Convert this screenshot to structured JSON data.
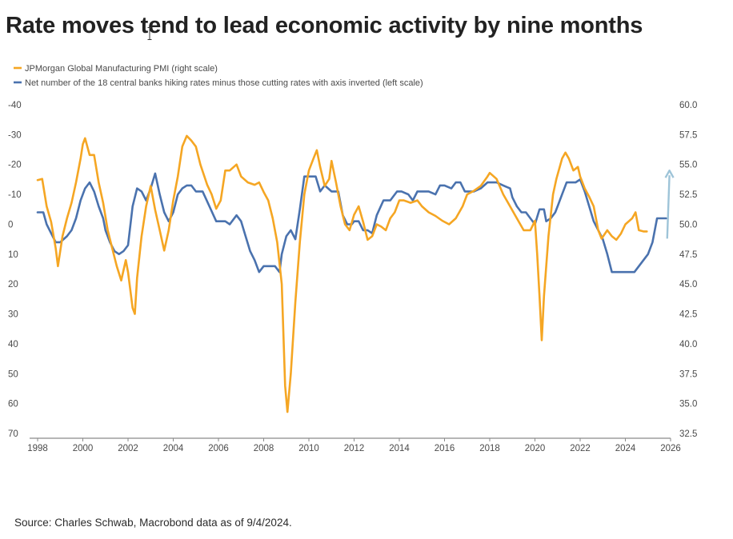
{
  "title": "Rate moves tend to lead economic activity by nine months",
  "source": "Source: Charles Schwab, Macrobond data as of 9/4/2024.",
  "chart_data": {
    "type": "line",
    "title": "Rate moves tend to lead economic activity by nine months",
    "x_range": [
      1998,
      2026
    ],
    "x_ticks": [
      "1998",
      "2000",
      "2002",
      "2004",
      "2006",
      "2008",
      "2010",
      "2012",
      "2014",
      "2016",
      "2018",
      "2020",
      "2022",
      "2024",
      "2026"
    ],
    "left_axis": {
      "inverted": true,
      "range": [
        -40,
        70
      ],
      "ticks": [
        "-40",
        "-30",
        "-20",
        "-10",
        "0",
        "10",
        "20",
        "30",
        "40",
        "50",
        "60",
        "70"
      ],
      "note": "axis inverted (left scale)"
    },
    "right_axis": {
      "range": [
        32.5,
        60.0
      ],
      "ticks": [
        "60.0",
        "57.5",
        "55.0",
        "52.5",
        "50.0",
        "47.5",
        "45.0",
        "42.5",
        "40.0",
        "37.5",
        "35.0",
        "32.5"
      ]
    },
    "legend_placement": "top-left",
    "grid": false,
    "series": [
      {
        "name": "JPMorgan Global Manufacturing PMI (right scale)",
        "axis": "right",
        "color": "#f5a623",
        "points": [
          [
            1998.0,
            53.7
          ],
          [
            1998.2,
            53.8
          ],
          [
            1998.4,
            51.5
          ],
          [
            1998.6,
            50.2
          ],
          [
            1998.8,
            48.0
          ],
          [
            1998.9,
            46.5
          ],
          [
            1999.1,
            49.0
          ],
          [
            1999.3,
            50.5
          ],
          [
            1999.5,
            51.8
          ],
          [
            1999.7,
            53.5
          ],
          [
            1999.9,
            55.5
          ],
          [
            2000.0,
            56.7
          ],
          [
            2000.1,
            57.2
          ],
          [
            2000.3,
            55.8
          ],
          [
            2000.5,
            55.8
          ],
          [
            2000.7,
            53.5
          ],
          [
            2000.9,
            51.8
          ],
          [
            2001.1,
            49.5
          ],
          [
            2001.3,
            48.0
          ],
          [
            2001.5,
            46.5
          ],
          [
            2001.7,
            45.3
          ],
          [
            2001.9,
            47.0
          ],
          [
            2002.0,
            46.0
          ],
          [
            2002.2,
            43.0
          ],
          [
            2002.3,
            42.5
          ],
          [
            2002.4,
            45.5
          ],
          [
            2002.6,
            49.0
          ],
          [
            2002.8,
            51.5
          ],
          [
            2003.0,
            53.2
          ],
          [
            2003.2,
            51.2
          ],
          [
            2003.4,
            49.5
          ],
          [
            2003.6,
            47.8
          ],
          [
            2003.8,
            49.5
          ],
          [
            2004.0,
            52.0
          ],
          [
            2004.2,
            54.0
          ],
          [
            2004.4,
            56.5
          ],
          [
            2004.6,
            57.4
          ],
          [
            2004.8,
            57.0
          ],
          [
            2005.0,
            56.5
          ],
          [
            2005.2,
            55.0
          ],
          [
            2005.5,
            53.3
          ],
          [
            2005.7,
            52.5
          ],
          [
            2005.9,
            51.3
          ],
          [
            2006.1,
            52.0
          ],
          [
            2006.3,
            54.5
          ],
          [
            2006.5,
            54.5
          ],
          [
            2006.8,
            55.0
          ],
          [
            2007.0,
            54.0
          ],
          [
            2007.3,
            53.5
          ],
          [
            2007.6,
            53.3
          ],
          [
            2007.8,
            53.5
          ],
          [
            2008.0,
            52.7
          ],
          [
            2008.2,
            52.0
          ],
          [
            2008.4,
            50.5
          ],
          [
            2008.6,
            48.5
          ],
          [
            2008.8,
            45.0
          ],
          [
            2008.95,
            36.5
          ],
          [
            2009.05,
            34.3
          ],
          [
            2009.2,
            37.5
          ],
          [
            2009.4,
            43.5
          ],
          [
            2009.6,
            48.5
          ],
          [
            2009.8,
            52.5
          ],
          [
            2010.0,
            54.5
          ],
          [
            2010.2,
            55.5
          ],
          [
            2010.35,
            56.2
          ],
          [
            2010.5,
            54.8
          ],
          [
            2010.7,
            53.2
          ],
          [
            2010.9,
            53.8
          ],
          [
            2011.0,
            55.3
          ],
          [
            2011.2,
            53.5
          ],
          [
            2011.4,
            51.5
          ],
          [
            2011.6,
            50.0
          ],
          [
            2011.8,
            49.5
          ],
          [
            2012.0,
            50.8
          ],
          [
            2012.2,
            51.5
          ],
          [
            2012.4,
            50.2
          ],
          [
            2012.6,
            48.7
          ],
          [
            2012.8,
            49.0
          ],
          [
            2013.0,
            50.0
          ],
          [
            2013.2,
            49.8
          ],
          [
            2013.4,
            49.5
          ],
          [
            2013.6,
            50.5
          ],
          [
            2013.8,
            51.0
          ],
          [
            2014.0,
            52.0
          ],
          [
            2014.2,
            52.0
          ],
          [
            2014.5,
            51.8
          ],
          [
            2014.8,
            52.0
          ],
          [
            2015.0,
            51.5
          ],
          [
            2015.3,
            51.0
          ],
          [
            2015.6,
            50.7
          ],
          [
            2015.9,
            50.3
          ],
          [
            2016.2,
            50.0
          ],
          [
            2016.5,
            50.5
          ],
          [
            2016.8,
            51.5
          ],
          [
            2017.0,
            52.5
          ],
          [
            2017.3,
            52.8
          ],
          [
            2017.6,
            53.2
          ],
          [
            2017.9,
            54.0
          ],
          [
            2018.0,
            54.3
          ],
          [
            2018.3,
            53.8
          ],
          [
            2018.6,
            52.5
          ],
          [
            2018.9,
            51.5
          ],
          [
            2019.2,
            50.5
          ],
          [
            2019.5,
            49.5
          ],
          [
            2019.8,
            49.5
          ],
          [
            2020.0,
            50.3
          ],
          [
            2020.1,
            47.5
          ],
          [
            2020.2,
            44.0
          ],
          [
            2020.3,
            40.3
          ],
          [
            2020.4,
            44.0
          ],
          [
            2020.6,
            49.0
          ],
          [
            2020.8,
            52.5
          ],
          [
            2020.95,
            53.8
          ],
          [
            2021.2,
            55.5
          ],
          [
            2021.35,
            56.0
          ],
          [
            2021.5,
            55.5
          ],
          [
            2021.7,
            54.5
          ],
          [
            2021.9,
            54.8
          ],
          [
            2022.0,
            54.0
          ],
          [
            2022.2,
            53.0
          ],
          [
            2022.4,
            52.3
          ],
          [
            2022.6,
            51.5
          ],
          [
            2022.8,
            49.5
          ],
          [
            2022.95,
            48.8
          ],
          [
            2023.2,
            49.5
          ],
          [
            2023.4,
            49.0
          ],
          [
            2023.6,
            48.7
          ],
          [
            2023.8,
            49.2
          ],
          [
            2024.0,
            50.0
          ],
          [
            2024.3,
            50.5
          ],
          [
            2024.45,
            51.0
          ],
          [
            2024.6,
            49.5
          ],
          [
            2024.8,
            49.4
          ],
          [
            2024.95,
            49.4
          ]
        ]
      },
      {
        "name": "Net number of the 18 central banks hiking rates minus those cutting rates with axis inverted (left scale)",
        "axis": "left",
        "color": "#4a72ae",
        "points": [
          [
            1998.0,
            -4
          ],
          [
            1998.25,
            -4
          ],
          [
            1998.4,
            0
          ],
          [
            1998.6,
            3
          ],
          [
            1998.8,
            6
          ],
          [
            1999.0,
            6
          ],
          [
            1999.3,
            4
          ],
          [
            1999.5,
            2
          ],
          [
            1999.7,
            -2
          ],
          [
            1999.9,
            -8
          ],
          [
            2000.1,
            -12
          ],
          [
            2000.3,
            -14
          ],
          [
            2000.5,
            -11
          ],
          [
            2000.7,
            -6
          ],
          [
            2000.9,
            -2
          ],
          [
            2001.0,
            2
          ],
          [
            2001.2,
            6
          ],
          [
            2001.4,
            9
          ],
          [
            2001.6,
            10
          ],
          [
            2001.8,
            9
          ],
          [
            2002.0,
            7
          ],
          [
            2002.2,
            -6
          ],
          [
            2002.4,
            -12
          ],
          [
            2002.6,
            -11
          ],
          [
            2002.8,
            -8
          ],
          [
            2003.0,
            -12
          ],
          [
            2003.2,
            -17
          ],
          [
            2003.4,
            -10
          ],
          [
            2003.6,
            -4
          ],
          [
            2003.8,
            -1
          ],
          [
            2004.0,
            -4
          ],
          [
            2004.2,
            -10
          ],
          [
            2004.4,
            -12
          ],
          [
            2004.6,
            -13
          ],
          [
            2004.8,
            -13
          ],
          [
            2005.0,
            -11
          ],
          [
            2005.3,
            -11
          ],
          [
            2005.6,
            -6
          ],
          [
            2005.9,
            -1
          ],
          [
            2006.0,
            -1
          ],
          [
            2006.3,
            -1
          ],
          [
            2006.5,
            0
          ],
          [
            2006.8,
            -3
          ],
          [
            2007.0,
            -1
          ],
          [
            2007.2,
            4
          ],
          [
            2007.4,
            9
          ],
          [
            2007.6,
            12
          ],
          [
            2007.8,
            16
          ],
          [
            2008.0,
            14
          ],
          [
            2008.3,
            14
          ],
          [
            2008.5,
            14
          ],
          [
            2008.7,
            16
          ],
          [
            2008.8,
            10
          ],
          [
            2009.0,
            4
          ],
          [
            2009.2,
            2
          ],
          [
            2009.4,
            5
          ],
          [
            2009.6,
            -5
          ],
          [
            2009.8,
            -16
          ],
          [
            2010.0,
            -16
          ],
          [
            2010.3,
            -16
          ],
          [
            2010.5,
            -11
          ],
          [
            2010.7,
            -13
          ],
          [
            2011.0,
            -11
          ],
          [
            2011.3,
            -11
          ],
          [
            2011.5,
            -3
          ],
          [
            2011.7,
            0
          ],
          [
            2011.9,
            0
          ],
          [
            2012.0,
            -1
          ],
          [
            2012.2,
            -1
          ],
          [
            2012.4,
            2
          ],
          [
            2012.6,
            2
          ],
          [
            2012.8,
            3
          ],
          [
            2013.0,
            -3
          ],
          [
            2013.3,
            -8
          ],
          [
            2013.6,
            -8
          ],
          [
            2013.9,
            -11
          ],
          [
            2014.1,
            -11
          ],
          [
            2014.4,
            -10
          ],
          [
            2014.6,
            -8
          ],
          [
            2014.8,
            -11
          ],
          [
            2015.0,
            -11
          ],
          [
            2015.3,
            -11
          ],
          [
            2015.6,
            -10
          ],
          [
            2015.8,
            -13
          ],
          [
            2016.0,
            -13
          ],
          [
            2016.3,
            -12
          ],
          [
            2016.5,
            -14
          ],
          [
            2016.7,
            -14
          ],
          [
            2016.9,
            -11
          ],
          [
            2017.0,
            -11
          ],
          [
            2017.3,
            -11
          ],
          [
            2017.6,
            -12
          ],
          [
            2017.9,
            -14
          ],
          [
            2018.0,
            -14
          ],
          [
            2018.3,
            -14
          ],
          [
            2018.6,
            -13
          ],
          [
            2018.9,
            -12
          ],
          [
            2019.0,
            -9
          ],
          [
            2019.2,
            -6
          ],
          [
            2019.4,
            -4
          ],
          [
            2019.6,
            -4
          ],
          [
            2019.8,
            -2
          ],
          [
            2020.0,
            0
          ],
          [
            2020.2,
            -5
          ],
          [
            2020.4,
            -5
          ],
          [
            2020.5,
            -1
          ],
          [
            2020.7,
            -2
          ],
          [
            2020.9,
            -4
          ],
          [
            2021.0,
            -6
          ],
          [
            2021.2,
            -10
          ],
          [
            2021.4,
            -14
          ],
          [
            2021.6,
            -14
          ],
          [
            2021.8,
            -14
          ],
          [
            2022.0,
            -15
          ],
          [
            2022.2,
            -11
          ],
          [
            2022.4,
            -6
          ],
          [
            2022.6,
            -1
          ],
          [
            2022.8,
            2
          ],
          [
            2023.0,
            5
          ],
          [
            2023.2,
            10
          ],
          [
            2023.4,
            16
          ],
          [
            2023.6,
            16
          ],
          [
            2023.8,
            16
          ],
          [
            2024.0,
            16
          ],
          [
            2024.2,
            16
          ],
          [
            2024.4,
            16
          ],
          [
            2024.6,
            14
          ],
          [
            2024.8,
            12
          ],
          [
            2025.0,
            10
          ],
          [
            2025.2,
            6
          ],
          [
            2025.4,
            -2
          ],
          [
            2025.6,
            -2
          ],
          [
            2025.8,
            -2
          ]
        ]
      }
    ],
    "annotation": {
      "type": "arrow",
      "color": "#9ec4d8",
      "from": [
        2025.85,
        48.8
      ],
      "to": [
        2025.95,
        54.5
      ]
    }
  }
}
